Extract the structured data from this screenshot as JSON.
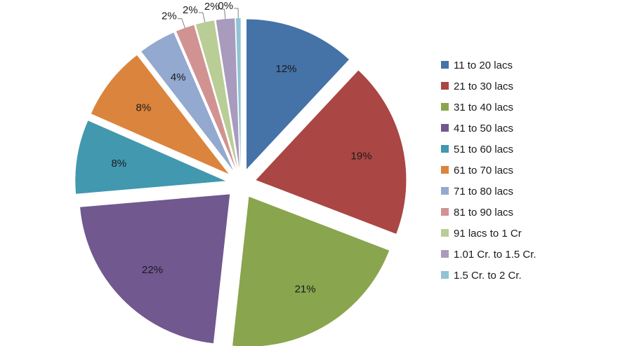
{
  "chart_data": {
    "type": "pie",
    "exploded": true,
    "title": "",
    "legend_position": "right",
    "slices": [
      {
        "label": "11 to 20 lacs",
        "value": 12,
        "display": "12%",
        "color": "#4572A7"
      },
      {
        "label": "21 to 30 lacs",
        "value": 19,
        "display": "19%",
        "color": "#AA4643"
      },
      {
        "label": "31 to 40 lacs",
        "value": 21,
        "display": "21%",
        "color": "#89A54E"
      },
      {
        "label": "41 to 50 lacs",
        "value": 22,
        "display": "22%",
        "color": "#71588F"
      },
      {
        "label": "51 to 60 lacs",
        "value": 8,
        "display": "8%",
        "color": "#4198AF"
      },
      {
        "label": "61 to 70 lacs",
        "value": 8,
        "display": "8%",
        "color": "#DB843D"
      },
      {
        "label": "71 to 80 lacs",
        "value": 4,
        "display": "4%",
        "color": "#93A9CF"
      },
      {
        "label": "81 to 90 lacs",
        "value": 2,
        "display": "2%",
        "color": "#D19392"
      },
      {
        "label": "91 lacs to 1 Cr",
        "value": 2,
        "display": "2%",
        "color": "#B9CD96"
      },
      {
        "label": "1.01 Cr. to 1.5 Cr.",
        "value": 2,
        "display": "2%",
        "color": "#A99BBD"
      },
      {
        "label": "1.5 Cr. to 2 Cr.",
        "value": 0.5,
        "display": "0%",
        "color": "#91C3D5"
      }
    ]
  }
}
